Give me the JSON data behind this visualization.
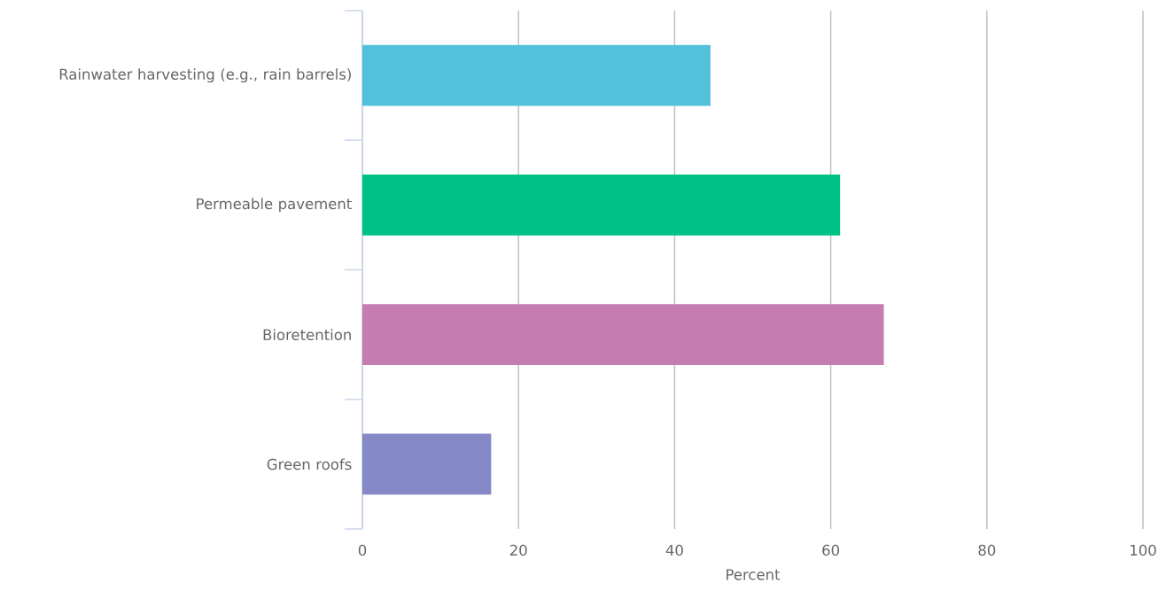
{
  "chart_data": {
    "type": "bar",
    "orientation": "horizontal",
    "categories": [
      "Rainwater harvesting (e.g., rain barrels)",
      "Permeable pavement",
      "Bioretention",
      "Green roofs"
    ],
    "values": [
      44.6,
      61.2,
      66.8,
      16.5
    ],
    "colors": [
      "#54c1db",
      "#00c185",
      "#c47cb1",
      "#8589c6"
    ],
    "xlabel": "Percent",
    "xlim": [
      0,
      100
    ],
    "xticks": [
      0,
      20,
      40,
      60,
      80,
      100
    ],
    "grid": "x"
  }
}
